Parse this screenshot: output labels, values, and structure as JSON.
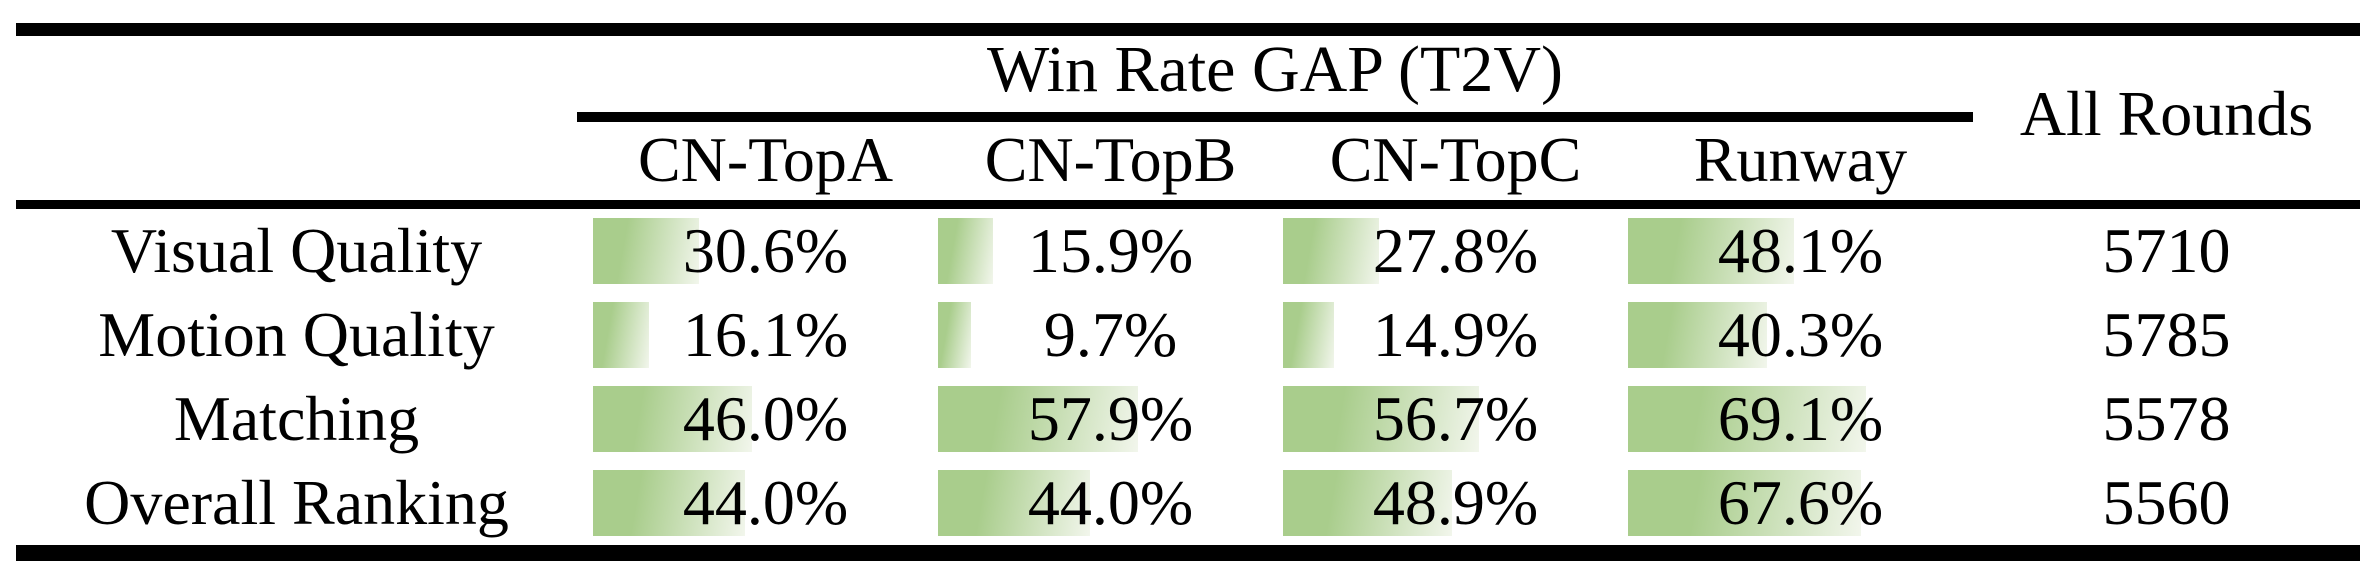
{
  "table": {
    "title": "Win Rate GAP (T2V)",
    "all_rounds_header": "All Rounds",
    "columns": [
      "CN-TopA",
      "CN-TopB",
      "CN-TopC",
      "Runway"
    ],
    "rows": [
      {
        "label": "Visual Quality",
        "values": [
          30.6,
          15.9,
          27.8,
          48.1
        ],
        "display": [
          "30.6%",
          "15.9%",
          "27.8%",
          "48.1%"
        ],
        "all_rounds": "5710"
      },
      {
        "label": "Motion Quality",
        "values": [
          16.1,
          9.7,
          14.9,
          40.3
        ],
        "display": [
          "16.1%",
          "9.7%",
          "14.9%",
          "40.3%"
        ],
        "all_rounds": "5785"
      },
      {
        "label": "Matching",
        "values": [
          46.0,
          57.9,
          56.7,
          69.1
        ],
        "display": [
          "46.0%",
          "57.9%",
          "56.7%",
          "69.1%"
        ],
        "all_rounds": "5578"
      },
      {
        "label": "Overall Ranking",
        "values": [
          44.0,
          44.0,
          48.9,
          67.6
        ],
        "display": [
          "44.0%",
          "44.0%",
          "48.9%",
          "67.6%"
        ],
        "all_rounds": "5560"
      }
    ],
    "colors": {
      "bar_green": "#a9cd8c",
      "bar_fade": "#f2f6ec",
      "rule_black": "#000000"
    }
  },
  "chart_data": {
    "type": "table",
    "title": "Win Rate GAP (T2V)",
    "categories": [
      "Visual Quality",
      "Motion Quality",
      "Matching",
      "Overall Ranking"
    ],
    "series": [
      {
        "name": "CN-TopA",
        "values": [
          30.6,
          16.1,
          46.0,
          44.0
        ]
      },
      {
        "name": "CN-TopB",
        "values": [
          15.9,
          9.7,
          57.9,
          44.0
        ]
      },
      {
        "name": "CN-TopC",
        "values": [
          27.8,
          14.9,
          56.7,
          48.9
        ]
      },
      {
        "name": "Runway",
        "values": [
          48.1,
          40.3,
          69.1,
          67.6
        ]
      },
      {
        "name": "All Rounds",
        "values": [
          5710,
          5785,
          5578,
          5560
        ]
      }
    ],
    "value_unit": "percent (bars scaled 0-100)",
    "layout": "data bars drawn behind percentages, bar length proportional to value"
  }
}
